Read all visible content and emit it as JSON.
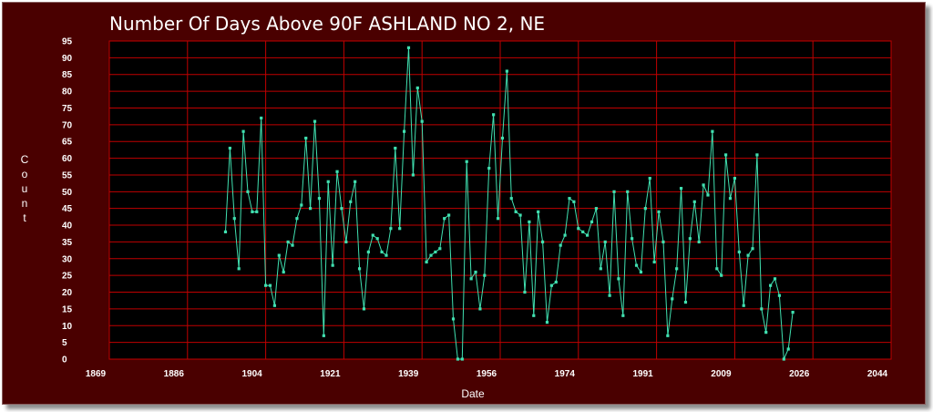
{
  "chart_data": {
    "type": "line",
    "title": "Number Of Days Above 90F   ASHLAND NO 2, NE",
    "xlabel": "Date",
    "ylabel": "Count",
    "xlim": [
      1869,
      2044
    ],
    "ylim": [
      0,
      95
    ],
    "x_ticks": [
      "1869",
      "1886",
      "1904",
      "1921",
      "1939",
      "1956",
      "1974",
      "1991",
      "2009",
      "2026",
      "2044"
    ],
    "y_ticks": [
      "0",
      "5",
      "10",
      "15",
      "20",
      "25",
      "30",
      "35",
      "40",
      "45",
      "50",
      "55",
      "60",
      "65",
      "70",
      "75",
      "80",
      "85",
      "90",
      "95"
    ],
    "grid": true,
    "colors": {
      "frame": "#4a0000",
      "plot_background": "#000000",
      "grid": "#c00000",
      "series": "#40e0b0"
    },
    "series": [
      {
        "x": [
          1895,
          1896,
          1897,
          1898,
          1899,
          1900,
          1901,
          1902,
          1903,
          1904,
          1905,
          1906,
          1907,
          1908,
          1909,
          1910,
          1911,
          1912,
          1913,
          1914,
          1915,
          1916,
          1917,
          1918,
          1919,
          1920,
          1921,
          1922,
          1923,
          1924,
          1925,
          1926,
          1927,
          1928,
          1929,
          1930,
          1931,
          1932,
          1933,
          1934,
          1935,
          1936,
          1937,
          1938,
          1939,
          1940,
          1941,
          1942,
          1943,
          1944,
          1945,
          1946,
          1947,
          1948,
          1949,
          1950,
          1951,
          1952,
          1953,
          1954,
          1955,
          1956,
          1957,
          1958,
          1959,
          1960,
          1961,
          1962,
          1963,
          1964,
          1965,
          1966,
          1967,
          1968,
          1969,
          1970,
          1971,
          1972,
          1973,
          1974,
          1975,
          1976,
          1977,
          1978,
          1979,
          1980,
          1981,
          1982,
          1983,
          1984,
          1985,
          1986,
          1987,
          1988,
          1989,
          1990,
          1991,
          1992,
          1993,
          1994,
          1995,
          1996,
          1997,
          1998,
          1999,
          2000,
          2001,
          2002,
          2003,
          2004,
          2005,
          2006,
          2007,
          2008,
          2009,
          2010,
          2011,
          2012,
          2013,
          2014,
          2015,
          2016,
          2017,
          2018,
          2019,
          2020,
          2021,
          2022
        ],
        "values": [
          38,
          63,
          42,
          27,
          68,
          50,
          44,
          44,
          72,
          22,
          22,
          16,
          31,
          26,
          35,
          34,
          42,
          46,
          66,
          45,
          71,
          48,
          7,
          53,
          28,
          56,
          45,
          35,
          47,
          53,
          27,
          15,
          32,
          37,
          36,
          32,
          31,
          39,
          63,
          39,
          68,
          93,
          55,
          81,
          71,
          29,
          31,
          32,
          33,
          42,
          43,
          12,
          0,
          0,
          59,
          24,
          26,
          15,
          25,
          57,
          73,
          42,
          66,
          86,
          48,
          44,
          43,
          20,
          41,
          13,
          44,
          35,
          11,
          22,
          23,
          34,
          37,
          48,
          47,
          39,
          38,
          37,
          41,
          45,
          27,
          35,
          19,
          50,
          24,
          13,
          50,
          36,
          28,
          26,
          45,
          54,
          29,
          44,
          35,
          7,
          18,
          27,
          51,
          17,
          36,
          47,
          35,
          52,
          49,
          68,
          27,
          25,
          61,
          48,
          54,
          32,
          16,
          31,
          33,
          61,
          15,
          8,
          22,
          24,
          19,
          0,
          3,
          14
        ]
      }
    ]
  }
}
